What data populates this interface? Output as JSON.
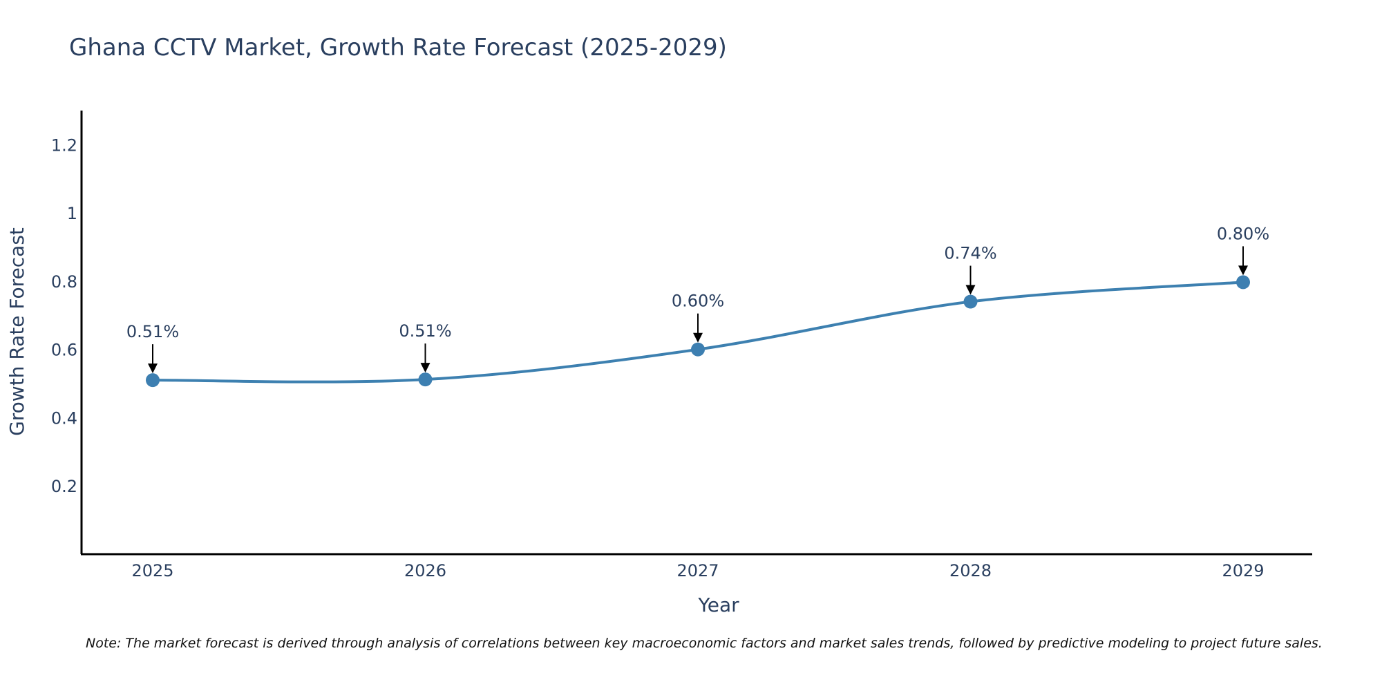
{
  "colors": {
    "line": "#3d80b0",
    "marker": "#3d7fb1",
    "text": "#2a3f5f",
    "axis": "#000000",
    "arrow": "#000000"
  },
  "chart_data": {
    "type": "line",
    "title": "Ghana CCTV Market, Growth Rate Forecast (2025-2029)",
    "xlabel": "Year",
    "ylabel": "Growth Rate Forecast",
    "x": [
      "2025",
      "2026",
      "2027",
      "2028",
      "2029"
    ],
    "values": [
      0.51,
      0.512,
      0.6,
      0.74,
      0.797
    ],
    "data_labels": [
      "0.51%",
      "0.51%",
      "0.60%",
      "0.74%",
      "0.80%"
    ],
    "ylim": [
      0,
      1.3
    ],
    "yticks": [
      0.2,
      0.4,
      0.6,
      0.8,
      1,
      1.2
    ],
    "ytick_labels": [
      "0.2",
      "0.4",
      "0.6",
      "0.8",
      "1",
      "1.2"
    ],
    "grid": false,
    "line_shape": "spline"
  },
  "note": "Note: The market forecast is derived through analysis of correlations between key macroeconomic factors and market sales trends, followed by predictive modeling to project future sales."
}
